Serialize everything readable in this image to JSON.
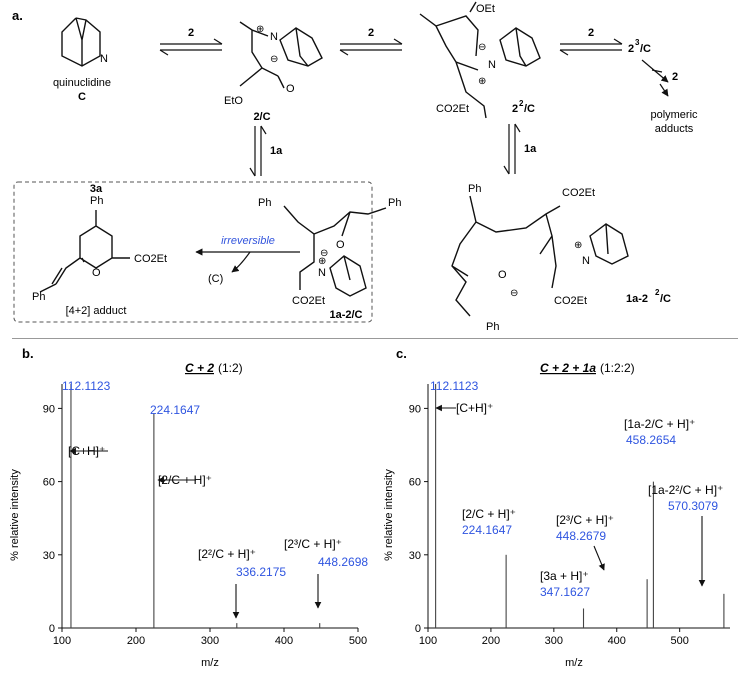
{
  "panel_a": {
    "label": "a.",
    "reagent": "2",
    "reagent_1a": "1a",
    "quinuclidine_name": "quinuclidine",
    "quinuclidine_code": "C",
    "int1_label": "2/C",
    "int2_label": "2",
    "int2_sup": "2",
    "int2_suffix": "/C",
    "int3_prefix": "2",
    "int3_sup": "3",
    "int3_suffix": "/C",
    "polymeric_line1": "polymeric",
    "polymeric_line2": "adducts",
    "adduct1_label": "1a-2/C",
    "adduct2_label_a": "1a-2",
    "adduct2_sup": "2",
    "adduct2_label_b": "/C",
    "product_label": "3a",
    "product_desc": "[4+2] adduct",
    "irreversible": "irreversible",
    "released_catalyst": "(C)",
    "ph": "Ph",
    "oet": "OEt",
    "co2et": "CO2Et",
    "eto": "EtO",
    "n_atom": "N",
    "o_atom": "O",
    "plus": "⊕",
    "minus": "⊖"
  },
  "panel_b": {
    "label": "b.",
    "title": "C + 2",
    "ratio": "(1:2)",
    "ylabel": "% relative intensity",
    "xlabel": "m/z",
    "peaks": [
      {
        "mz": 112.1123,
        "intensity": 100,
        "mass_label": "112.1123",
        "ion": "[C+H]⁺"
      },
      {
        "mz": 224.1647,
        "intensity": 88,
        "mass_label": "224.1647",
        "ion": "[2/C + H]⁺"
      },
      {
        "mz": 336.2175,
        "intensity": 2,
        "mass_label": "336.2175",
        "ion": "[2²/C + H]⁺"
      },
      {
        "mz": 448.2698,
        "intensity": 2,
        "mass_label": "448.2698",
        "ion": "[2³/C + H]⁺"
      }
    ]
  },
  "panel_c": {
    "label": "c.",
    "title": "C + 2 + 1a",
    "ratio": "(1:2:2)",
    "ylabel": "% relative intensity",
    "xlabel": "m/z",
    "peaks": [
      {
        "mz": 112.1123,
        "intensity": 100,
        "mass_label": "112.1123",
        "ion": "[C+H]⁺"
      },
      {
        "mz": 224.1647,
        "intensity": 30,
        "mass_label": "224.1647",
        "ion": "[2/C + H]⁺"
      },
      {
        "mz": 347.1627,
        "intensity": 8,
        "mass_label": "347.1627",
        "ion": "[3a + H]⁺"
      },
      {
        "mz": 448.2679,
        "intensity": 20,
        "mass_label": "448.2679",
        "ion": "[2³/C + H]⁺"
      },
      {
        "mz": 458.2654,
        "intensity": 60,
        "mass_label": "458.2654",
        "ion": "[1a-2/C + H]⁺"
      },
      {
        "mz": 570.3079,
        "intensity": 14,
        "mass_label": "570.3079",
        "ion": "[1a-2²/C + H]⁺"
      }
    ]
  },
  "chart_data": [
    {
      "type": "bar",
      "title": "C + 2 (1:2)",
      "xlabel": "m/z",
      "ylabel": "% relative intensity",
      "xlim": [
        100,
        500
      ],
      "ylim": [
        0,
        100
      ],
      "xticks": [
        100,
        200,
        300,
        400,
        500
      ],
      "yticks": [
        0,
        30,
        60,
        90
      ],
      "x": [
        112.1123,
        224.1647,
        336.2175,
        448.2698
      ],
      "values": [
        100,
        88,
        2,
        2
      ]
    },
    {
      "type": "bar",
      "title": "C + 2 + 1a (1:2:2)",
      "xlabel": "m/z",
      "ylabel": "% relative intensity",
      "xlim": [
        100,
        580
      ],
      "ylim": [
        0,
        100
      ],
      "xticks": [
        100,
        200,
        300,
        400,
        500
      ],
      "yticks": [
        0,
        30,
        60,
        90
      ],
      "x": [
        112.1123,
        224.1647,
        347.1627,
        448.2679,
        458.2654,
        570.3079
      ],
      "values": [
        100,
        30,
        8,
        20,
        60,
        14
      ]
    }
  ]
}
